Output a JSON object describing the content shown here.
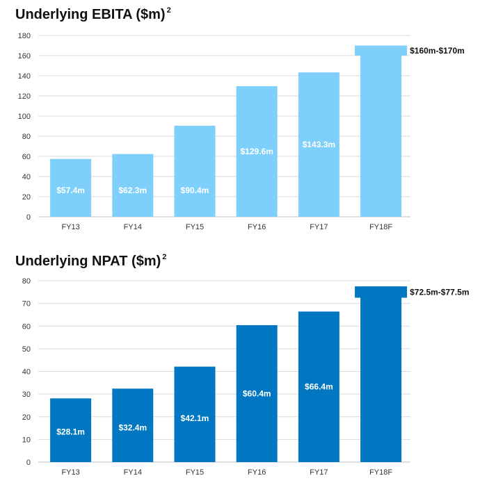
{
  "chart_data": [
    {
      "type": "bar",
      "title": "Underlying EBITA ($m)",
      "title_superscript": "2",
      "categories": [
        "FY13",
        "FY14",
        "FY15",
        "FY16",
        "FY17",
        "FY18F"
      ],
      "values": [
        57.4,
        62.3,
        90.4,
        129.6,
        143.3,
        170
      ],
      "forecast_range": [
        160,
        170
      ],
      "data_labels": [
        "$57.4m",
        "$62.3m",
        "$90.4m",
        "$129.6m",
        "$143.3m",
        "$160m-$170m"
      ],
      "ylim": [
        0,
        180
      ],
      "yticks": [
        0,
        20,
        40,
        60,
        80,
        100,
        120,
        140,
        160,
        180
      ],
      "grid": true,
      "color": "#7fcffb"
    },
    {
      "type": "bar",
      "title": "Underlying NPAT ($m)",
      "title_superscript": "2",
      "categories": [
        "FY13",
        "FY14",
        "FY15",
        "FY16",
        "FY17",
        "FY18F"
      ],
      "values": [
        28.1,
        32.4,
        42.1,
        60.4,
        66.4,
        77.5
      ],
      "forecast_range": [
        72.5,
        77.5
      ],
      "data_labels": [
        "$28.1m",
        "$32.4m",
        "$42.1m",
        "$60.4m",
        "$66.4m",
        "$72.5m-$77.5m"
      ],
      "ylim": [
        0,
        80
      ],
      "yticks": [
        0,
        10,
        20,
        30,
        40,
        50,
        60,
        70,
        80
      ],
      "grid": true,
      "color": "#0077c0"
    }
  ]
}
